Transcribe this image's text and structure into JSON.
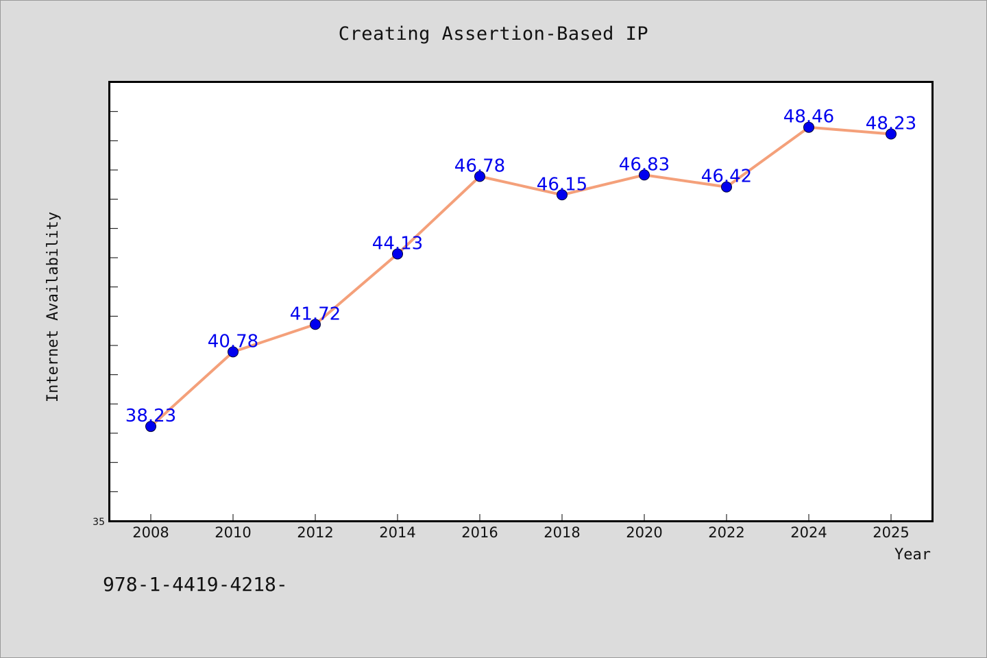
{
  "chart_data": {
    "type": "line",
    "title": "Creating Assertion-Based IP",
    "xlabel": "Year",
    "ylabel": "Internet Availability",
    "categories": [
      "2008",
      "2010",
      "2012",
      "2014",
      "2016",
      "2018",
      "2020",
      "2022",
      "2024",
      "2025"
    ],
    "series": [
      {
        "values": [
          38.23,
          40.78,
          41.72,
          44.13,
          46.78,
          46.15,
          46.83,
          46.42,
          48.46,
          48.23
        ],
        "data_labels": [
          "38.23",
          "40.78",
          "41.72",
          "44.13",
          "46.78",
          "46.15",
          "46.83",
          "46.42",
          "48.46",
          "48.23"
        ],
        "line_color": "#f4a07a",
        "marker_color": "#0000ee"
      }
    ],
    "ylim": [
      35,
      50
    ],
    "y_tick_label_shown": "35",
    "y_minor_tick_step": 1,
    "grid": false,
    "label_color": "#0000ee"
  },
  "footnote": "978-1-4419-4218-"
}
